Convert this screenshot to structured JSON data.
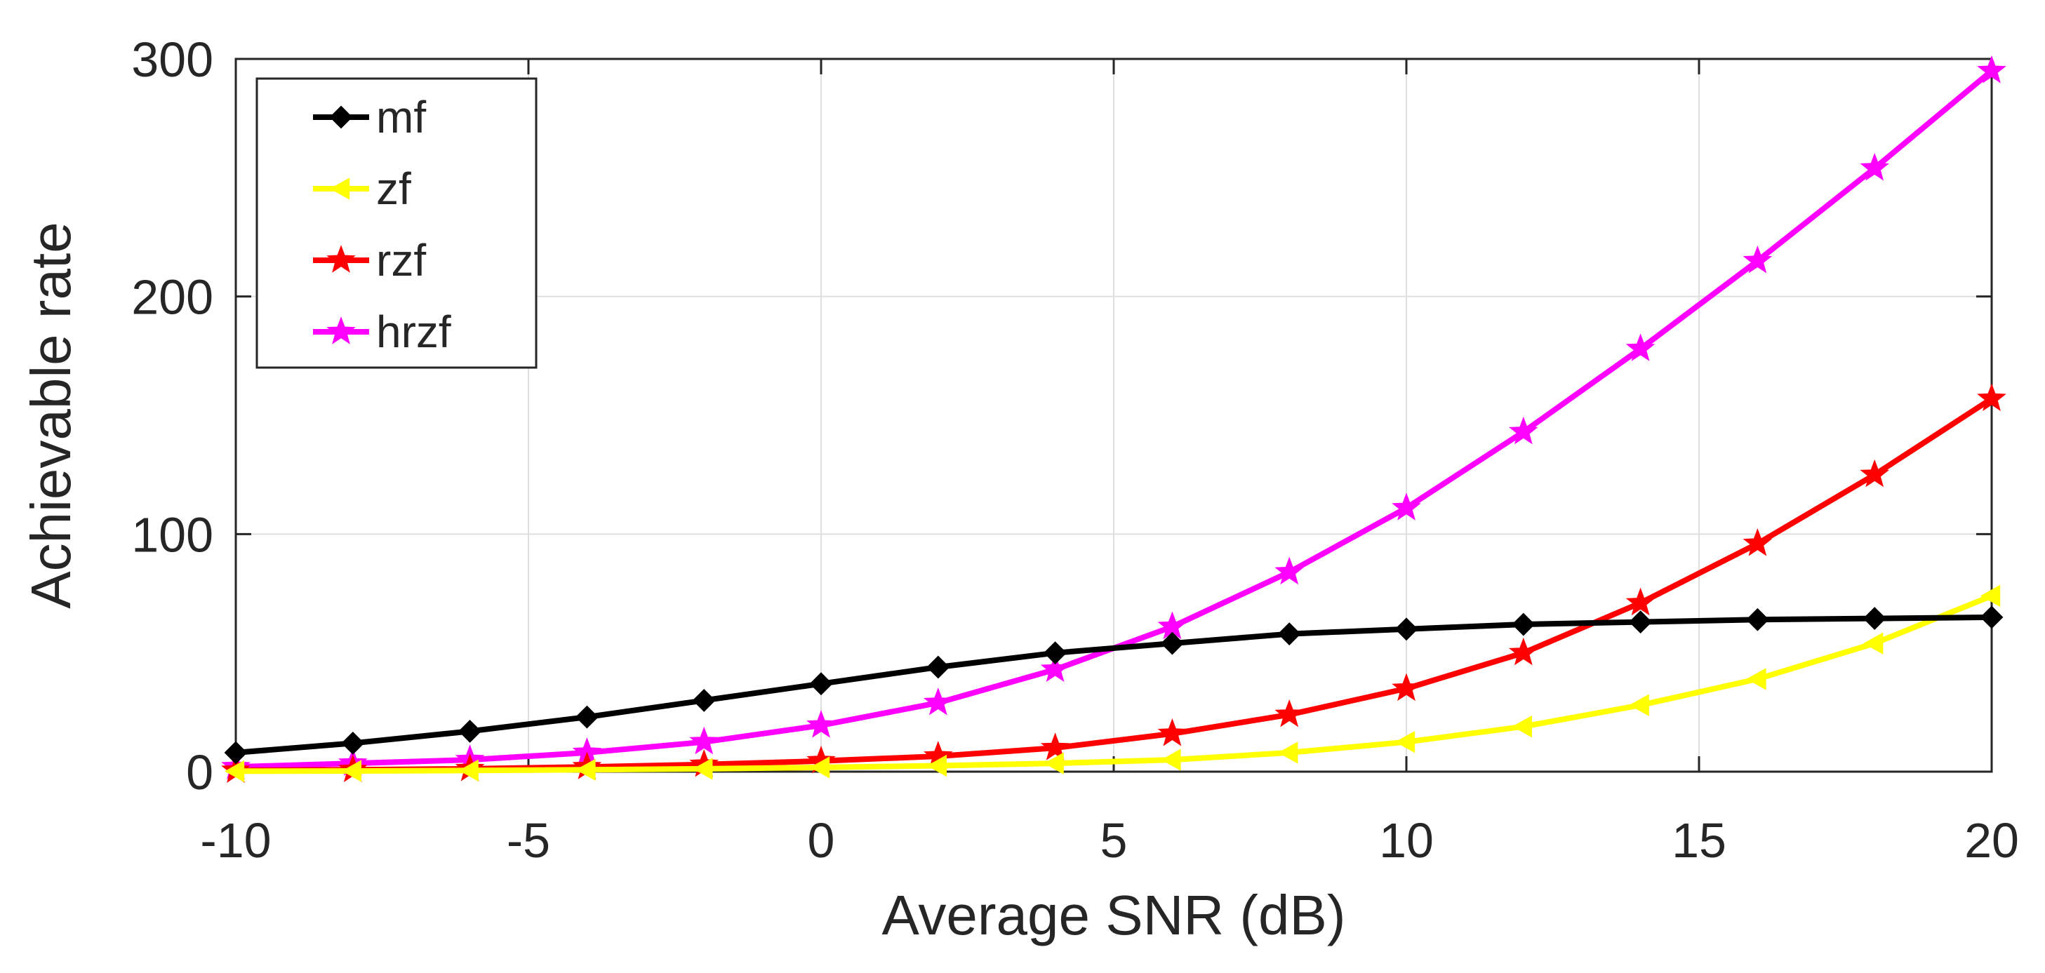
{
  "chart_data": {
    "type": "line",
    "title": "",
    "xlabel": "Average SNR (dB)",
    "ylabel": "Achievable rate",
    "xlim": [
      -10,
      20
    ],
    "ylim": [
      0,
      300
    ],
    "grid": true,
    "legend_position": "top-left",
    "xticks": [
      -10,
      -5,
      0,
      5,
      10,
      15,
      20
    ],
    "xtick_labels": [
      "-10",
      "-5",
      "0",
      "5",
      "10",
      "15",
      "20"
    ],
    "yticks": [
      0,
      100,
      200,
      300
    ],
    "ytick_labels": [
      "0",
      "100",
      "200",
      "300"
    ],
    "x": [
      -10,
      -8,
      -6,
      -4,
      -2,
      0,
      2,
      4,
      6,
      8,
      10,
      12,
      14,
      16,
      18,
      20
    ],
    "series": [
      {
        "name": "mf",
        "color": "#000000",
        "marker": "diamond",
        "values": [
          8,
          12,
          17,
          23,
          30,
          37,
          44,
          50,
          54,
          58,
          60,
          62,
          63,
          64,
          64.5,
          65
        ]
      },
      {
        "name": "zf",
        "color": "#ffff00",
        "marker": "triangle-left",
        "values": [
          0.2,
          0.3,
          0.5,
          0.8,
          1.2,
          1.8,
          2.5,
          3.5,
          5,
          8,
          12.5,
          19,
          28,
          39,
          54,
          74
        ]
      },
      {
        "name": "rzf",
        "color": "#ff0000",
        "marker": "star",
        "values": [
          0.5,
          0.8,
          1.2,
          2,
          3,
          4.5,
          6.5,
          10,
          16,
          24,
          35,
          50,
          71,
          96,
          125,
          157
        ]
      },
      {
        "name": "hrzf",
        "color": "#ff00ff",
        "marker": "star",
        "values": [
          2,
          3.5,
          5,
          8,
          12.5,
          19.5,
          29,
          43,
          61,
          84,
          111,
          143,
          178,
          215,
          254,
          295
        ]
      }
    ]
  }
}
